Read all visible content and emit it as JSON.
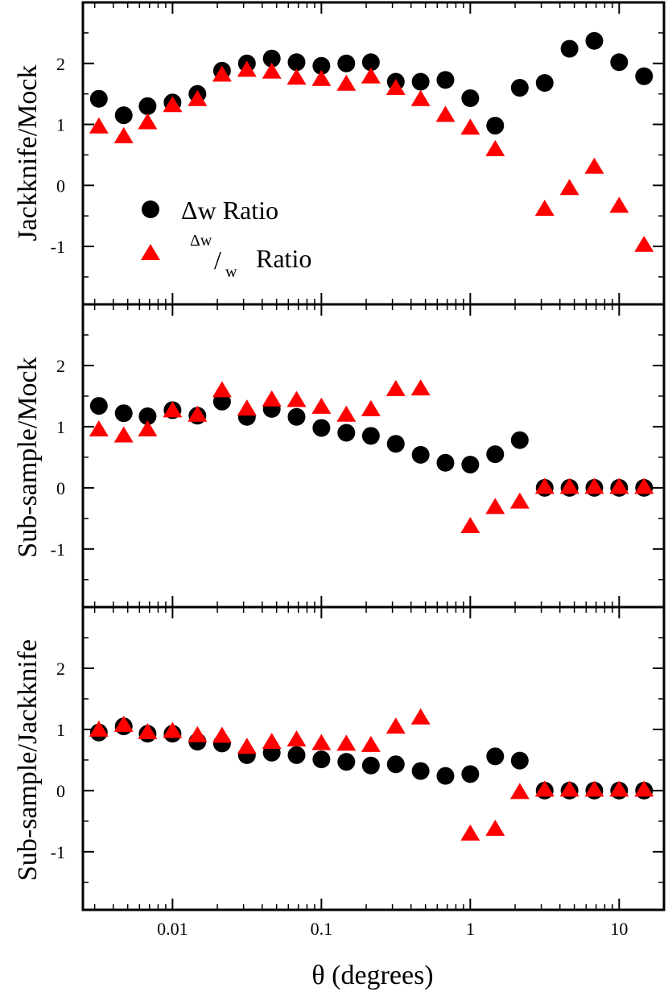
{
  "chart_data": {
    "type": "scatter",
    "xlabel": "θ (degrees)",
    "xscale": "log",
    "xlim": [
      0.0025,
      20
    ],
    "x_tick_labels": [
      "0.01",
      "0.1",
      "1",
      "10"
    ],
    "x": [
      0.0032,
      0.0047,
      0.0068,
      0.01,
      0.0147,
      0.0215,
      0.0316,
      0.0464,
      0.0681,
      0.1,
      0.147,
      0.215,
      0.316,
      0.464,
      0.681,
      1.0,
      1.47,
      2.15,
      3.16,
      4.64,
      6.81,
      10.0,
      14.7
    ],
    "legend": {
      "position": "lower-left of top panel",
      "entries": [
        {
          "series": "dw",
          "label": "Δw Ratio",
          "marker": "circle"
        },
        {
          "series": "dww",
          "label_sup": "Δw",
          "label_main": "/",
          "label_sub": "w",
          "label_rest": " Ratio",
          "marker": "triangle"
        }
      ]
    },
    "panels": [
      {
        "ylabel": "Jackknife/Mock",
        "ylim": [
          -1.95,
          3.0
        ],
        "y_tick_labels": [
          "2",
          "1",
          "0",
          "-1"
        ],
        "series": [
          {
            "name": "Δw Ratio",
            "key": "dw",
            "color": "#000000",
            "values": [
              1.42,
              1.15,
              1.3,
              1.36,
              1.5,
              1.88,
              2.0,
              2.08,
              2.02,
              1.96,
              2.0,
              2.02,
              1.7,
              1.7,
              1.73,
              1.43,
              0.98,
              1.6,
              1.68,
              2.24,
              2.37,
              2.02,
              1.79
            ]
          },
          {
            "name": "Δw/w Ratio",
            "key": "dww",
            "color": "#ff0000",
            "values": [
              0.97,
              0.81,
              1.04,
              1.32,
              1.42,
              1.82,
              1.9,
              1.87,
              1.77,
              1.75,
              1.67,
              1.79,
              1.6,
              1.42,
              1.16,
              0.95,
              0.6,
              null,
              -0.38,
              -0.04,
              0.31,
              -0.33,
              -0.97
            ]
          }
        ]
      },
      {
        "ylabel": "Sub-sample/Mock",
        "ylim": [
          -1.95,
          3.0
        ],
        "y_tick_labels": [
          "2",
          "1",
          "0",
          "-1"
        ],
        "series": [
          {
            "name": "Δw Ratio",
            "key": "dw",
            "color": "#000000",
            "values": [
              1.34,
              1.22,
              1.17,
              1.27,
              1.18,
              1.41,
              1.16,
              1.29,
              1.16,
              0.98,
              0.9,
              0.85,
              0.72,
              0.54,
              0.41,
              0.38,
              0.55,
              0.78,
              0.0,
              0.0,
              0.0,
              0.0,
              0.0
            ]
          },
          {
            "name": "Δw/w Ratio",
            "key": "dww",
            "color": "#ff0000",
            "values": [
              0.96,
              0.86,
              0.96,
              1.27,
              1.2,
              1.6,
              1.3,
              1.45,
              1.44,
              1.33,
              1.2,
              1.29,
              1.62,
              1.63,
              null,
              -0.62,
              -0.31,
              -0.22,
              0.02,
              0.02,
              0.02,
              0.02,
              0.02
            ]
          }
        ]
      },
      {
        "ylabel": "Sub-sample/Jackknife",
        "ylim": [
          -1.95,
          3.0
        ],
        "y_tick_labels": [
          "2",
          "1",
          "0",
          "-1"
        ],
        "series": [
          {
            "name": "Δw Ratio",
            "key": "dw",
            "color": "#000000",
            "values": [
              0.95,
              1.05,
              0.93,
              0.93,
              0.8,
              0.77,
              0.58,
              0.62,
              0.58,
              0.51,
              0.47,
              0.41,
              0.43,
              0.32,
              0.24,
              0.27,
              0.56,
              0.49,
              0.0,
              0.0,
              0.0,
              0.0,
              0.0
            ]
          },
          {
            "name": "Δw/w Ratio",
            "key": "dww",
            "color": "#ff0000",
            "values": [
              1.0,
              1.08,
              0.96,
              0.98,
              0.91,
              0.9,
              0.72,
              0.8,
              0.84,
              0.78,
              0.77,
              0.75,
              1.05,
              1.2,
              null,
              -0.7,
              -0.62,
              -0.02,
              0.02,
              0.02,
              0.02,
              0.02,
              0.02
            ]
          }
        ]
      }
    ]
  }
}
